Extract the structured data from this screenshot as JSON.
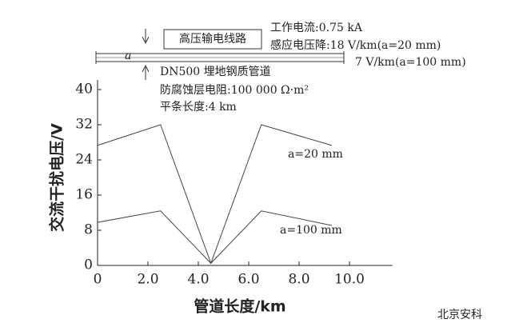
{
  "chart_data": {
    "type": "line",
    "x": [
      0,
      2.5,
      4.5,
      6.5,
      9.3
    ],
    "series": [
      {
        "name": "a=20 mm",
        "color": "#444444",
        "values": [
          27.3,
          32,
          0.5,
          32,
          27.3
        ]
      },
      {
        "name": "a=100 mm",
        "color": "#444444",
        "values": [
          9.8,
          12.4,
          0.5,
          12.4,
          9.1
        ]
      }
    ],
    "x_label": "管道长度/km",
    "y_label": "交流干扰电压/V",
    "xlim": [
      0,
      11.7
    ],
    "ylim": [
      0,
      40
    ],
    "xticks": [
      0,
      {
        "value": 2,
        "label": "2.0"
      },
      {
        "value": 4,
        "label": "4.0"
      },
      {
        "value": 6,
        "label": "6.0"
      },
      {
        "value": 8,
        "label": "8.0"
      },
      {
        "value": 10,
        "label": "10.0"
      }
    ],
    "yticks": [
      0,
      8,
      16,
      24,
      32,
      40
    ],
    "annotations": [
      "高压输电线路",
      "工作电流:0.75 kA",
      "感应电压降:18 V/km(a=20 mm)",
      "7 V/km(a=100 mm)",
      "a",
      "DN500 埋地钢质管道",
      "防腐蚀层电阻:100 000 Ω·m²",
      "平条长度:4 km"
    ],
    "watermark": "北京安科"
  }
}
